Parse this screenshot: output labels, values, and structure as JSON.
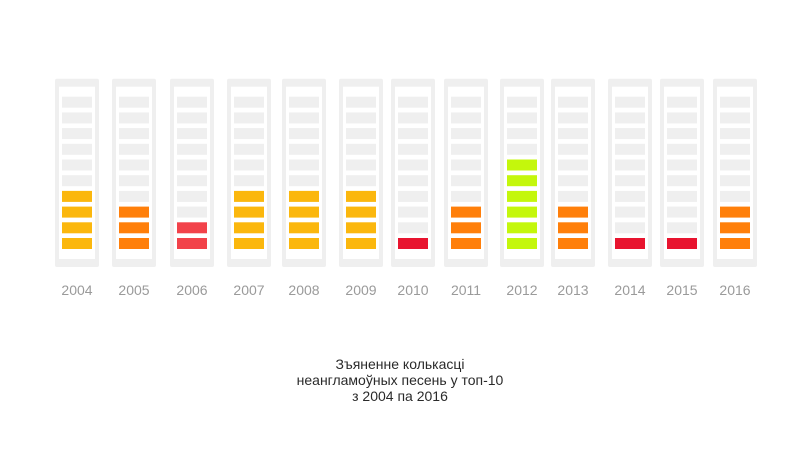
{
  "chart_data": {
    "type": "bar",
    "title_lines": [
      "Зъяненне колькасці",
      "неангламоўных песень у топ-10",
      "з 2004 па 2016"
    ],
    "categories": [
      "2004",
      "2005",
      "2006",
      "2007",
      "2008",
      "2009",
      "2010",
      "2011",
      "2012",
      "2013",
      "2014",
      "2015",
      "2016"
    ],
    "values": [
      4,
      3,
      2,
      4,
      4,
      4,
      1,
      3,
      6,
      3,
      1,
      1,
      3
    ],
    "ylim": [
      0,
      10
    ],
    "colors": {
      "1": "#e8142f",
      "2": "#f2424a",
      "3": "#ff7f0a",
      "4": "#fbb70d",
      "6": "#c4f70c",
      "empty_cell": "#efefef",
      "frame": "#efefef"
    }
  }
}
